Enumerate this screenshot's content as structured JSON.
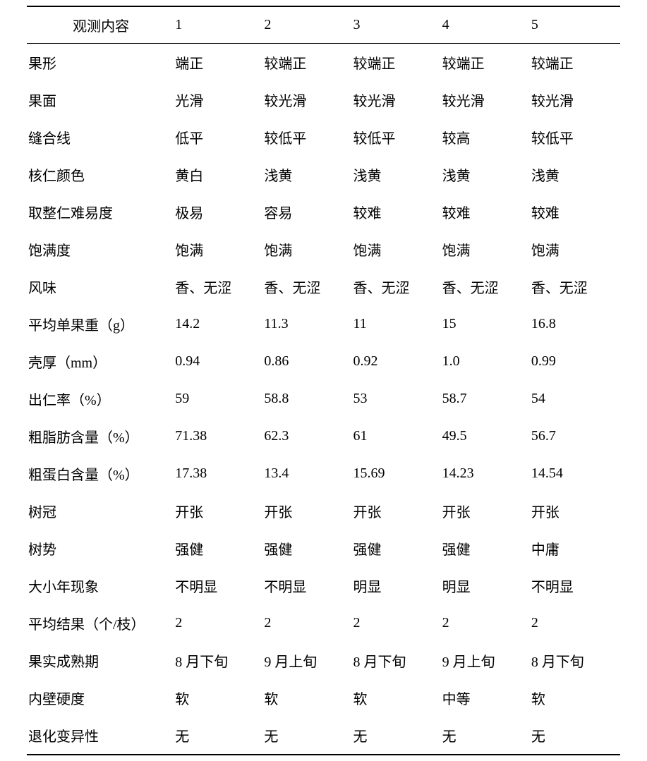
{
  "table": {
    "columns": [
      "观测内容",
      "1",
      "2",
      "3",
      "4",
      "5"
    ],
    "rows": [
      [
        "果形",
        "端正",
        "较端正",
        "较端正",
        "较端正",
        "较端正"
      ],
      [
        "果面",
        "光滑",
        "较光滑",
        "较光滑",
        "较光滑",
        "较光滑"
      ],
      [
        "缝合线",
        "低平",
        "较低平",
        "较低平",
        "较高",
        "较低平"
      ],
      [
        "核仁颜色",
        "黄白",
        "浅黄",
        "浅黄",
        "浅黄",
        "浅黄"
      ],
      [
        "取整仁难易度",
        "极易",
        "容易",
        "较难",
        "较难",
        "较难"
      ],
      [
        "饱满度",
        "饱满",
        "饱满",
        "饱满",
        "饱满",
        "饱满"
      ],
      [
        "风味",
        "香、无涩",
        "香、无涩",
        "香、无涩",
        "香、无涩",
        "香、无涩"
      ],
      [
        "平均单果重（g）",
        "14.2",
        "11.3",
        "11",
        "15",
        "16.8"
      ],
      [
        "壳厚（mm）",
        "0.94",
        "0.86",
        "0.92",
        "1.0",
        "0.99"
      ],
      [
        "出仁率（%）",
        "59",
        "58.8",
        "53",
        "58.7",
        "54"
      ],
      [
        "粗脂肪含量（%）",
        "71.38",
        "62.3",
        "61",
        "49.5",
        "56.7"
      ],
      [
        "粗蛋白含量（%）",
        "17.38",
        "13.4",
        "15.69",
        "14.23",
        "14.54"
      ],
      [
        "树冠",
        "开张",
        "开张",
        "开张",
        "开张",
        "开张"
      ],
      [
        "树势",
        "强健",
        "强健",
        "强健",
        "强健",
        "中庸"
      ],
      [
        "大小年现象",
        "不明显",
        "不明显",
        "明显",
        "明显",
        "不明显"
      ],
      [
        "平均结果（个/枝）",
        "2",
        "2",
        "2",
        "2",
        "2"
      ],
      [
        "果实成熟期",
        "8 月下旬",
        "9 月上旬",
        "8 月下旬",
        "9 月上旬",
        "8 月下旬"
      ],
      [
        "内壁硬度",
        "软",
        "软",
        "软",
        "中等",
        "软"
      ],
      [
        "退化变异性",
        "无",
        "无",
        "无",
        "无",
        "无"
      ]
    ],
    "styling": {
      "border_top_width": 2,
      "border_bottom_width": 2,
      "header_border_bottom_width": 1.5,
      "border_color": "#000000",
      "background_color": "#ffffff",
      "text_color": "#000000",
      "font_family": "SimSun",
      "font_size": 20,
      "row_padding_vertical": 12,
      "column_widths_percent": [
        25,
        15,
        15,
        15,
        15,
        15
      ]
    }
  }
}
